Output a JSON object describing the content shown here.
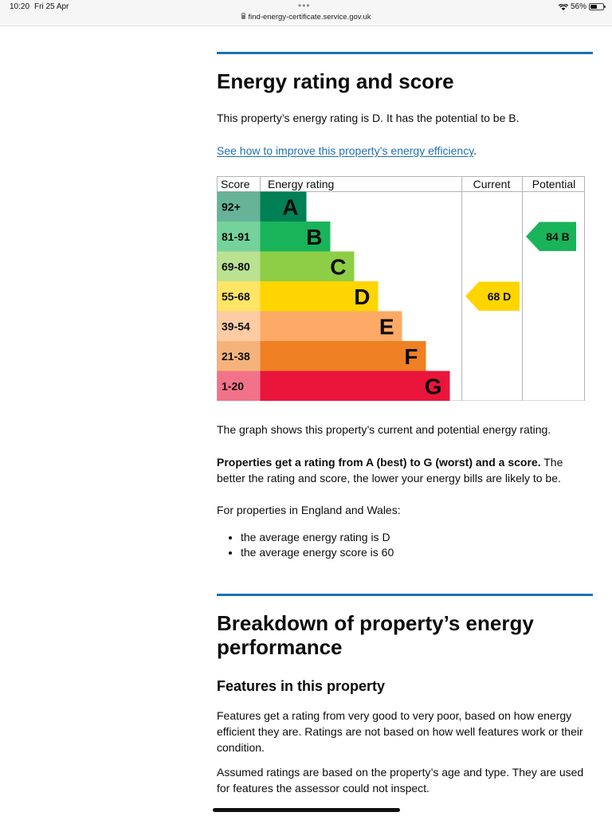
{
  "status_bar": {
    "time": "10:20",
    "date": "Fri 25 Apr",
    "url": "find-energy-certificate.service.gov.uk",
    "battery": "56%",
    "battery_level": 0.56
  },
  "section_energy": {
    "heading": "Energy rating and score",
    "intro": "This property’s energy rating is D. It has the potential to be B.",
    "improve_link": "See how to improve this property’s energy efficiency",
    "improve_link_suffix": "."
  },
  "chart_data": {
    "type": "table",
    "headers": {
      "score": "Score",
      "rating": "Energy rating",
      "current": "Current",
      "potential": "Potential"
    },
    "bands": [
      {
        "score": "92+",
        "letter": "A",
        "color": "#008054",
        "light": "#66b398"
      },
      {
        "score": "81-91",
        "letter": "B",
        "color": "#19b459",
        "light": "#75d29b"
      },
      {
        "score": "69-80",
        "letter": "C",
        "color": "#8dce46",
        "light": "#bbe290"
      },
      {
        "score": "55-68",
        "letter": "D",
        "color": "#ffd500",
        "light": "#ffe566"
      },
      {
        "score": "39-54",
        "letter": "E",
        "color": "#fcaa65",
        "light": "#fdcca3"
      },
      {
        "score": "21-38",
        "letter": "F",
        "color": "#ef8023",
        "light": "#f5b37b"
      },
      {
        "score": "1-20",
        "letter": "G",
        "color": "#e9153b",
        "light": "#f27389"
      }
    ],
    "current": {
      "score": 68,
      "letter": "D",
      "label": "68  D"
    },
    "potential": {
      "score": 84,
      "letter": "B",
      "label": "84  B"
    }
  },
  "section_text": {
    "graph_note": "The graph shows this property’s current and potential energy rating.",
    "ratings_bold": "Properties get a rating from A (best) to G (worst) and a score.",
    "ratings_rest": " The better the rating and score, the lower your energy bills are likely to be.",
    "england_wales": "For properties in England and Wales:",
    "average_items": [
      "the average energy rating is D",
      "the average energy score is 60"
    ]
  },
  "section_breakdown": {
    "heading": "Breakdown of property’s energy performance",
    "features_heading": "Features in this property",
    "features_text": "Features get a rating from very good to very poor, based on how energy efficient they are. Ratings are not based on how well features work or their condition.",
    "assumed_text": "Assumed ratings are based on the property’s age and type. They are used for features the assessor could not inspect."
  }
}
